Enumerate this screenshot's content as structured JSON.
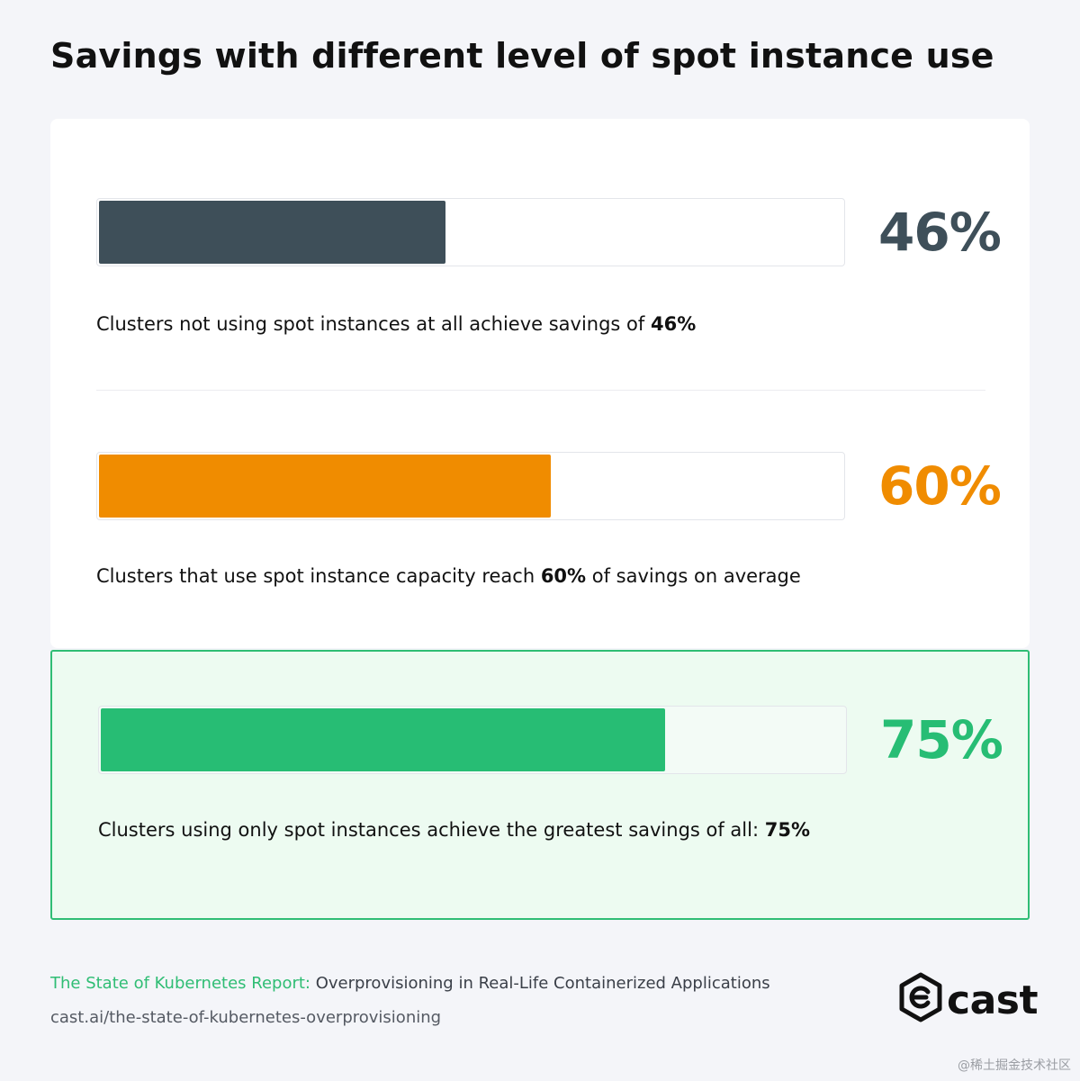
{
  "title": "Savings with different level of spot instance use",
  "chart_data": {
    "type": "bar",
    "orientation": "horizontal",
    "categories": [
      "Clusters not using spot instances at all achieve savings of 46%",
      "Clusters that use spot instance capacity reach 60% of savings on average",
      "Clusters using only spot instances achieve the greatest savings of all: 75%"
    ],
    "values": [
      46,
      60,
      75
    ],
    "colors": [
      "#3e4f59",
      "#f08c00",
      "#27bd74"
    ],
    "xlim": [
      0,
      100
    ],
    "title": "Savings with different level of spot instance use"
  },
  "rows": [
    {
      "pct_label": "46%",
      "caption_pre": "Clusters not using spot instances at all achieve savings of ",
      "caption_bold": "46%",
      "caption_post": ""
    },
    {
      "pct_label": "60%",
      "caption_pre": "Clusters that use spot instance capacity reach ",
      "caption_bold": "60%",
      "caption_post": " of savings on average"
    },
    {
      "pct_label": "75%",
      "caption_pre": "Clusters using only spot instances achieve the greatest savings of all: ",
      "caption_bold": "75%",
      "caption_post": ""
    }
  ],
  "footer": {
    "report_accent": "The State of Kubernetes Report:",
    "report_rest": " Overprovisioning in Real-Life Containerized Applications",
    "url": "cast.ai/the-state-of-kubernetes-overprovisioning"
  },
  "logo": {
    "text": "cast",
    "icon": "cast-logo-icon"
  },
  "watermark": "@稀土掘金技术社区"
}
